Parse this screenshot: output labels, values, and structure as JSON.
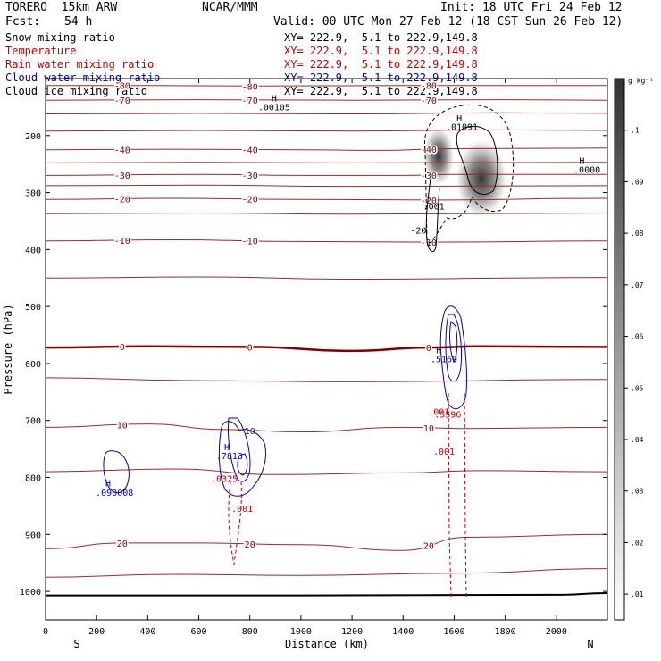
{
  "header": {
    "model": "TORERO  15km ARW",
    "org": "NCAR/MMM",
    "init": "Init: 18 UTC Fri 24 Feb 12",
    "fcst_label": "Fcst:",
    "fcst_value": "54 h",
    "valid": "Valid: 00 UTC Mon 27 Feb 12 (18 CST Sun 26 Feb 12)"
  },
  "fields": [
    {
      "name": "Snow mixing ratio",
      "color": "#000000",
      "xy": "XY= 222.9,  5.1 to 222.9,149.8"
    },
    {
      "name": "Temperature",
      "color": "#c00000",
      "xy": "XY= 222.9,  5.1 to 222.9,149.8"
    },
    {
      "name": "Rain water mixing ratio",
      "color": "#c00000",
      "xy": "XY= 222.9,  5.1 to 222.9,149.8"
    },
    {
      "name": "Cloud water mixing ratio",
      "color": "#0000c0",
      "xy": "XY= 222.9,  5.1 to 222.9,149.8"
    },
    {
      "name": "Cloud ice mixing ratio",
      "color": "#000000",
      "xy": "XY= 222.9,  5.1 to 222.9,149.8"
    }
  ],
  "colorbar": {
    "unit": "g kg⁻¹",
    "ticks": [
      ".01",
      ".02",
      ".03",
      ".04",
      ".05",
      ".06",
      ".07",
      ".08",
      ".09",
      ".1"
    ]
  },
  "chart_data": {
    "type": "cross-section",
    "xlabel": "Distance (km)",
    "ylabel": "Pressure (hPa)",
    "xlim": [
      0,
      2200
    ],
    "ylim": [
      1050,
      100
    ],
    "x_ticks": [
      0,
      200,
      400,
      600,
      800,
      1000,
      1200,
      1400,
      1600,
      1800,
      2000
    ],
    "y_ticks": [
      200,
      300,
      400,
      500,
      600,
      700,
      800,
      900,
      1000
    ],
    "left_end_label": "S",
    "right_end_label": "N",
    "temperature_contours": [
      {
        "value": -80,
        "label": "-80",
        "points": [
          [
            0,
            112
          ],
          [
            400,
            112
          ],
          [
            800,
            113
          ],
          [
            1400,
            112
          ],
          [
            2200,
            112
          ]
        ]
      },
      {
        "value": -70,
        "label": "-70",
        "points": [
          [
            0,
            138
          ],
          [
            600,
            137
          ],
          [
            1200,
            138
          ],
          [
            1800,
            137
          ],
          [
            2200,
            138
          ]
        ]
      },
      {
        "value": -60,
        "label": "",
        "points": [
          [
            0,
            162
          ],
          [
            600,
            161
          ],
          [
            1200,
            162
          ],
          [
            1800,
            160
          ],
          [
            2200,
            161
          ]
        ]
      },
      {
        "value": -50,
        "label": "",
        "points": [
          [
            0,
            192
          ],
          [
            600,
            191
          ],
          [
            1200,
            192
          ],
          [
            1800,
            190
          ],
          [
            2200,
            191
          ]
        ]
      },
      {
        "value": -40,
        "label": "-40",
        "points": [
          [
            0,
            225
          ],
          [
            500,
            224
          ],
          [
            1000,
            225
          ],
          [
            1300,
            226
          ],
          [
            1600,
            223
          ],
          [
            2200,
            222
          ]
        ]
      },
      {
        "value": -35,
        "label": "",
        "points": [
          [
            0,
            248
          ],
          [
            600,
            247
          ],
          [
            1200,
            248
          ],
          [
            2200,
            247
          ]
        ]
      },
      {
        "value": -30,
        "label": "-30",
        "points": [
          [
            0,
            270
          ],
          [
            600,
            268
          ],
          [
            1000,
            270
          ],
          [
            1400,
            270
          ],
          [
            1600,
            268
          ],
          [
            2200,
            268
          ]
        ]
      },
      {
        "value": -25,
        "label": "",
        "points": [
          [
            0,
            288
          ],
          [
            600,
            287
          ],
          [
            1200,
            289
          ],
          [
            2200,
            288
          ]
        ]
      },
      {
        "value": -20,
        "label": "-20",
        "points": [
          [
            0,
            312
          ],
          [
            500,
            310
          ],
          [
            1000,
            312
          ],
          [
            1500,
            313
          ],
          [
            2200,
            310
          ]
        ]
      },
      {
        "value": -15,
        "label": "",
        "points": [
          [
            0,
            337
          ],
          [
            600,
            336
          ],
          [
            1200,
            338
          ],
          [
            2200,
            336
          ]
        ]
      },
      {
        "value": -10,
        "label": "-10",
        "points": [
          [
            0,
            385
          ],
          [
            500,
            383
          ],
          [
            1000,
            386
          ],
          [
            1500,
            387
          ],
          [
            2200,
            385
          ]
        ]
      },
      {
        "value": -5,
        "label": "",
        "points": [
          [
            0,
            450
          ],
          [
            600,
            448
          ],
          [
            1200,
            452
          ],
          [
            2200,
            449
          ]
        ]
      },
      {
        "value": 0,
        "label": "0",
        "points": [
          [
            0,
            572
          ],
          [
            400,
            570
          ],
          [
            800,
            571
          ],
          [
            1200,
            578
          ],
          [
            1500,
            572
          ],
          [
            1700,
            570
          ],
          [
            2200,
            571
          ]
        ]
      },
      {
        "value": 5,
        "label": "",
        "points": [
          [
            0,
            625
          ],
          [
            600,
            630
          ],
          [
            1200,
            632
          ],
          [
            2200,
            628
          ]
        ]
      },
      {
        "value": 10,
        "label": "10",
        "points": [
          [
            0,
            712
          ],
          [
            400,
            706
          ],
          [
            700,
            716
          ],
          [
            1000,
            720
          ],
          [
            1400,
            712
          ],
          [
            1650,
            714
          ],
          [
            2200,
            712
          ]
        ]
      },
      {
        "value": 15,
        "label": "",
        "points": [
          [
            0,
            790
          ],
          [
            500,
            785
          ],
          [
            900,
            795
          ],
          [
            1400,
            792
          ],
          [
            1700,
            788
          ],
          [
            2200,
            790
          ]
        ]
      },
      {
        "value": 20,
        "label": "20",
        "points": [
          [
            0,
            925
          ],
          [
            300,
            915
          ],
          [
            600,
            915
          ],
          [
            1000,
            918
          ],
          [
            1400,
            928
          ],
          [
            1650,
            905
          ],
          [
            2200,
            900
          ]
        ]
      },
      {
        "value": 25,
        "label": "",
        "points": [
          [
            0,
            975
          ],
          [
            500,
            970
          ],
          [
            1000,
            972
          ],
          [
            1600,
            968
          ],
          [
            2200,
            960
          ]
        ]
      }
    ],
    "surface": {
      "points": [
        [
          0,
          1007
        ],
        [
          1000,
          1007
        ],
        [
          2000,
          1006
        ],
        [
          2200,
          1003
        ]
      ]
    },
    "snow_max_labels": [
      {
        "label": "H",
        "x": 1620,
        "y": 175
      },
      {
        "label": ".01091",
        "x": 1630,
        "y": 190
      },
      {
        "label": "H",
        "x": 2100,
        "y": 250
      },
      {
        "label": ".0000",
        "x": 2120,
        "y": 265
      },
      {
        "label": "H",
        "x": 895,
        "y": 140
      },
      {
        "label": ".00105",
        "x": 895,
        "y": 156
      }
    ],
    "cloud_ice_labels": [
      {
        "label": ".001",
        "x": 1520,
        "y": 330
      },
      {
        "label": "-20",
        "x": 1460,
        "y": 372
      }
    ],
    "cloud_water_labels": [
      {
        "label": "H",
        "x": 1540,
        "y": 582
      },
      {
        "label": ".5169",
        "x": 1560,
        "y": 598
      },
      {
        "label": "H",
        "x": 710,
        "y": 752
      },
      {
        "label": ".7813",
        "x": 720,
        "y": 768
      },
      {
        "label": "H",
        "x": 245,
        "y": 816
      },
      {
        "label": ".090008",
        "x": 270,
        "y": 832
      }
    ],
    "rain_labels": [
      {
        "label": ".001",
        "x": 1540,
        "y": 690
      },
      {
        "label": ".5596",
        "x": 1575,
        "y": 695
      },
      {
        "label": ".001",
        "x": 1560,
        "y": 760
      },
      {
        "label": ".0325",
        "x": 700,
        "y": 808
      },
      {
        "label": ".001",
        "x": 770,
        "y": 860
      }
    ]
  }
}
